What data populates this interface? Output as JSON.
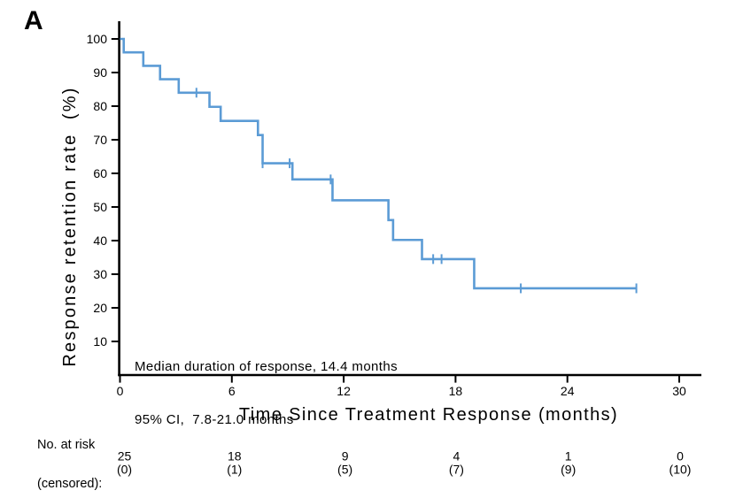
{
  "figure": {
    "panel_label": "A"
  },
  "chart_data": {
    "type": "line",
    "subtype": "kaplan_meier_step",
    "title": "",
    "xlabel": "Time Since Treatment Response (months)",
    "ylabel": "Response retention rate  (%)",
    "x_ticks": [
      0,
      6,
      12,
      18,
      24,
      30
    ],
    "y_ticks": [
      10,
      20,
      30,
      40,
      50,
      60,
      70,
      80,
      90,
      100
    ],
    "xlim": [
      0,
      31.2
    ],
    "ylim": [
      0,
      105
    ],
    "grid": false,
    "legend": "none",
    "line_color": "#5b9bd5",
    "axis_color": "#000000",
    "annotation": {
      "line1": "Median duration of response, 14.4 months",
      "line2": "95% CI,  7.8-21.0 months"
    },
    "series": [
      {
        "name": "Response retention rate",
        "steps_t": [
          0,
          0.2,
          1.25,
          2.15,
          3.15,
          4.8,
          5.4,
          7.4,
          7.65,
          9.25,
          11.4,
          14.4,
          14.65,
          16.2,
          19.0
        ],
        "steps_s": [
          100,
          96,
          92,
          88,
          84,
          79.8,
          75.6,
          71.4,
          63,
          58.2,
          52,
          46.1,
          40.2,
          34.5,
          25.8
        ],
        "end_t": 27.7,
        "censor_t": [
          4.1,
          7.65,
          9.1,
          11.3,
          16.8,
          17.25,
          21.5,
          27.7
        ],
        "censor_s": [
          84,
          63,
          63,
          58.2,
          34.5,
          34.5,
          25.8,
          25.8
        ]
      }
    ],
    "at_risk": {
      "header_line1": "No. at risk",
      "header_line2": "(censored):",
      "times": [
        0,
        6,
        12,
        18,
        24,
        30
      ],
      "counts": [
        "25",
        "18",
        "9",
        "4",
        "1",
        "0"
      ],
      "censored": [
        "(0)",
        "(1)",
        "(5)",
        "(7)",
        "(9)",
        "(10)"
      ]
    }
  }
}
